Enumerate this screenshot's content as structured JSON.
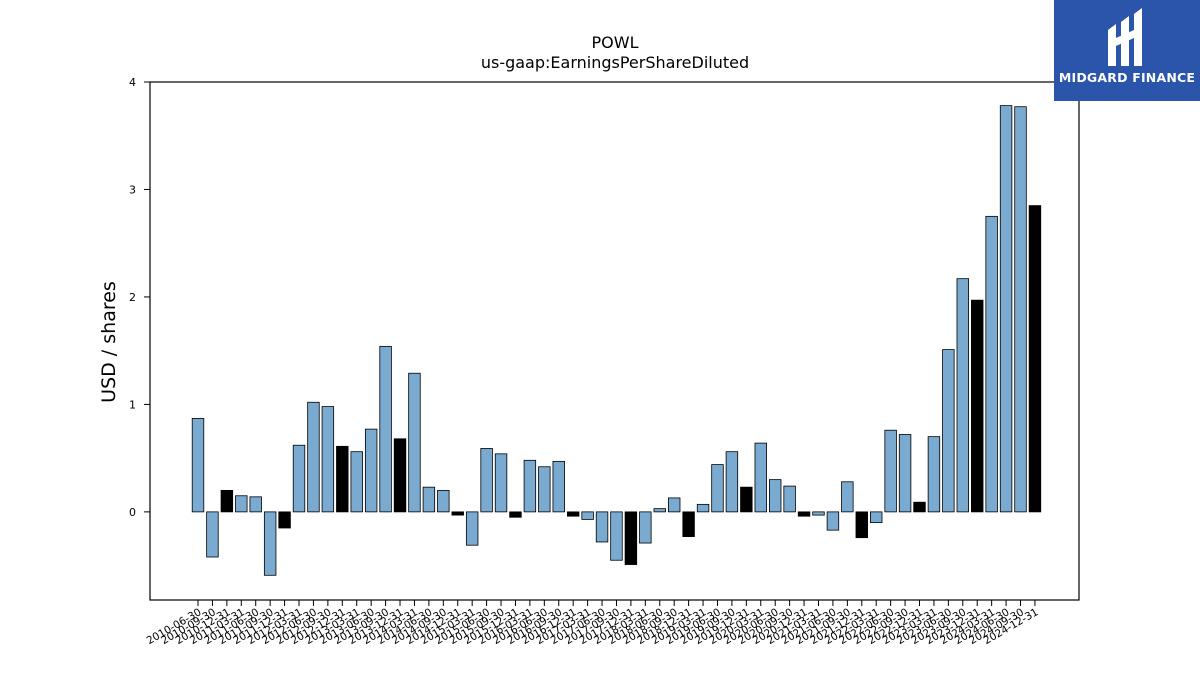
{
  "logo": {
    "text": "MIDGARD FINANCE",
    "icon": "midgard-logo-icon",
    "color": "#2a55ab"
  },
  "chart_data": {
    "type": "bar",
    "title": "POWL",
    "subtitle": "us-gaap:EarningsPerShareDiluted",
    "xlabel": "",
    "ylabel": "USD / shares",
    "ylim": [
      -0.82,
      4.0
    ],
    "yticks": [
      0,
      1,
      2,
      3,
      4
    ],
    "grid": false,
    "colors": {
      "quarter": "#7aaad0",
      "annual": "#000000",
      "edge": "#000000"
    },
    "categories": [
      "2010-06-30",
      "2010-09-30",
      "2010-12-31",
      "2011-03-31",
      "2011-06-30",
      "2011-09-30",
      "2011-12-31",
      "2012-03-31",
      "2012-06-30",
      "2012-09-30",
      "2012-12-31",
      "2013-03-31",
      "2013-06-30",
      "2013-09-30",
      "2013-12-31",
      "2014-03-31",
      "2014-06-30",
      "2014-09-30",
      "2014-12-31",
      "2015-03-31",
      "2015-06-30",
      "2015-09-30",
      "2015-12-31",
      "2016-03-31",
      "2016-06-30",
      "2016-09-30",
      "2016-12-31",
      "2017-03-31",
      "2017-06-30",
      "2017-09-30",
      "2017-12-31",
      "2018-03-31",
      "2018-06-30",
      "2018-09-30",
      "2018-12-31",
      "2019-03-31",
      "2019-06-30",
      "2019-09-30",
      "2019-12-31",
      "2020-03-31",
      "2020-06-30",
      "2020-09-30",
      "2020-12-31",
      "2021-03-31",
      "2021-06-30",
      "2021-09-30",
      "2021-12-31",
      "2022-03-31",
      "2022-06-30",
      "2022-09-30",
      "2022-12-31",
      "2023-03-31",
      "2023-06-30",
      "2023-09-30",
      "2023-12-31",
      "2024-03-31",
      "2024-06-30",
      "2024-09-30",
      "2024-12-31"
    ],
    "values": [
      0.87,
      -0.42,
      0.2,
      0.15,
      0.14,
      -0.59,
      -0.15,
      0.62,
      1.02,
      0.98,
      0.61,
      0.56,
      0.77,
      1.54,
      0.68,
      1.29,
      0.23,
      0.2,
      -0.03,
      -0.31,
      0.59,
      0.54,
      -0.05,
      0.48,
      0.42,
      0.47,
      -0.04,
      -0.07,
      -0.28,
      -0.45,
      -0.49,
      -0.29,
      0.03,
      0.13,
      -0.23,
      0.07,
      0.44,
      0.56,
      0.23,
      0.64,
      0.3,
      0.24,
      -0.04,
      -0.03,
      -0.17,
      0.28,
      -0.24,
      -0.1,
      0.76,
      0.72,
      0.09,
      0.7,
      1.51,
      2.17,
      1.97,
      2.75,
      3.78,
      3.77,
      2.85
    ],
    "is_annual": [
      false,
      false,
      true,
      false,
      false,
      false,
      true,
      false,
      false,
      false,
      true,
      false,
      false,
      false,
      true,
      false,
      false,
      false,
      true,
      false,
      false,
      false,
      true,
      false,
      false,
      false,
      true,
      false,
      false,
      false,
      true,
      false,
      false,
      false,
      true,
      false,
      false,
      false,
      true,
      false,
      false,
      false,
      true,
      false,
      false,
      false,
      true,
      false,
      false,
      false,
      true,
      false,
      false,
      false,
      true,
      false,
      false,
      false,
      true
    ]
  }
}
